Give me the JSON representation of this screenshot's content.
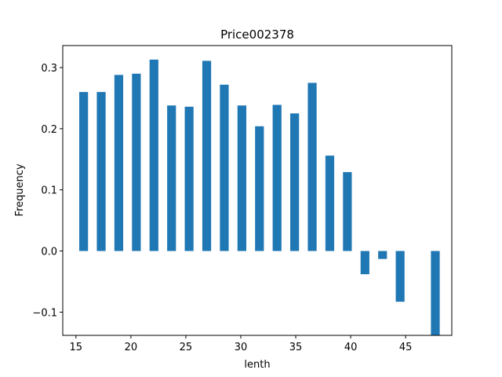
{
  "chart_data": {
    "type": "bar",
    "title": "Price002378",
    "xlabel": "lenth",
    "ylabel": "Frequency",
    "bar_color": "#1f77b4",
    "xlim": [
      13.8,
      49.2
    ],
    "ylim": [
      -0.138,
      0.336
    ],
    "xticks": [
      15,
      20,
      25,
      30,
      35,
      40,
      45
    ],
    "yticks": [
      -0.1,
      0.0,
      0.1,
      0.2,
      0.3
    ],
    "ytick_labels": [
      "−0.1",
      "0.0",
      "0.1",
      "0.2",
      "0.3"
    ],
    "bar_width": 0.8,
    "bars": [
      {
        "x": 15.7,
        "value": 0.26
      },
      {
        "x": 17.3,
        "value": 0.26
      },
      {
        "x": 18.9,
        "value": 0.288
      },
      {
        "x": 20.5,
        "value": 0.29
      },
      {
        "x": 22.1,
        "value": 0.313
      },
      {
        "x": 23.7,
        "value": 0.238
      },
      {
        "x": 25.3,
        "value": 0.236
      },
      {
        "x": 26.9,
        "value": 0.311
      },
      {
        "x": 28.5,
        "value": 0.272
      },
      {
        "x": 30.1,
        "value": 0.238
      },
      {
        "x": 31.7,
        "value": 0.204
      },
      {
        "x": 33.3,
        "value": 0.239
      },
      {
        "x": 34.9,
        "value": 0.225
      },
      {
        "x": 36.5,
        "value": 0.275
      },
      {
        "x": 38.1,
        "value": 0.156
      },
      {
        "x": 39.7,
        "value": 0.129
      },
      {
        "x": 41.3,
        "value": -0.038
      },
      {
        "x": 42.9,
        "value": -0.013
      },
      {
        "x": 44.5,
        "value": -0.083
      },
      {
        "x": 47.7,
        "value": -0.138
      }
    ]
  }
}
